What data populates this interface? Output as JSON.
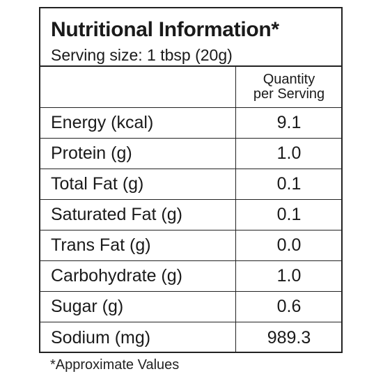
{
  "label": {
    "title": "Nutritional Information*",
    "serving": "Serving size: 1 tbsp (20g)",
    "column_header": {
      "line1": "Quantity",
      "line2": "per Serving"
    },
    "rows": [
      {
        "label": "Energy (kcal)",
        "value": "9.1"
      },
      {
        "label": "Protein (g)",
        "value": "1.0"
      },
      {
        "label": "Total Fat (g)",
        "value": "0.1"
      },
      {
        "label": "Saturated Fat (g)",
        "value": "0.1"
      },
      {
        "label": "Trans Fat (g)",
        "value": "0.0"
      },
      {
        "label": "Carbohydrate (g)",
        "value": "1.0"
      },
      {
        "label": "Sugar (g)",
        "value": "0.6"
      },
      {
        "label": "Sodium (mg)",
        "value": "989.3"
      }
    ],
    "footnote": "*Approximate Values"
  }
}
